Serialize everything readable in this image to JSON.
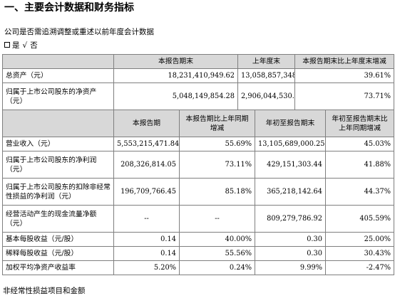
{
  "heading": "一、主要会计数据和财务指标",
  "adjust_question": "公司是否需追溯调整或重述以前年度会计数据",
  "choice": {
    "yes": "是",
    "check": "√",
    "no": "否"
  },
  "top_header": [
    "",
    "本报告期末",
    "上年度末",
    "本报告期末比上年度末增减"
  ],
  "top_rows": [
    {
      "label": "总资产（元）",
      "values": [
        "18,231,410,949.62",
        "13,058,857,348.42",
        "39.61%"
      ]
    },
    {
      "label": "归属于上市公司股东的净资产（元）",
      "values": [
        "5,048,149,854.28",
        "2,906,044,530.94",
        "73.71%"
      ]
    }
  ],
  "bottom_header": [
    "",
    "本报告期",
    "本报告期比上年同期增减",
    "年初至报告期末",
    "年初至报告期末比上年同期增减"
  ],
  "bottom_rows": [
    {
      "label": "营业收入（元）",
      "values": [
        "5,553,215,471.84",
        "55.69%",
        "13,105,689,000.25",
        "45.03%"
      ]
    },
    {
      "label": "归属于上市公司股东的净利润（元）",
      "values": [
        "208,326,814.05",
        "73.11%",
        "429,151,303.44",
        "41.88%"
      ]
    },
    {
      "label": "归属于上市公司股东的扣除非经常性损益的净利润（元）",
      "values": [
        "196,709,766.45",
        "85.18%",
        "365,218,142.64",
        "44.37%"
      ]
    },
    {
      "label": "经营活动产生的现金流量净额（元）",
      "values": [
        "--",
        "--",
        "809,279,786.92",
        "405.59%"
      ]
    },
    {
      "label": "基本每股收益（元/股）",
      "values": [
        "0.14",
        "40.00%",
        "0.30",
        "25.00%"
      ]
    },
    {
      "label": "稀释每股收益（元/股）",
      "values": [
        "0.14",
        "55.56%",
        "0.30",
        "30.43%"
      ]
    },
    {
      "label": "加权平均净资产收益率",
      "values": [
        "5.20%",
        "0.24%",
        "9.99%",
        "-2.47%"
      ]
    }
  ],
  "footer": "非经常性损益项目和金额"
}
